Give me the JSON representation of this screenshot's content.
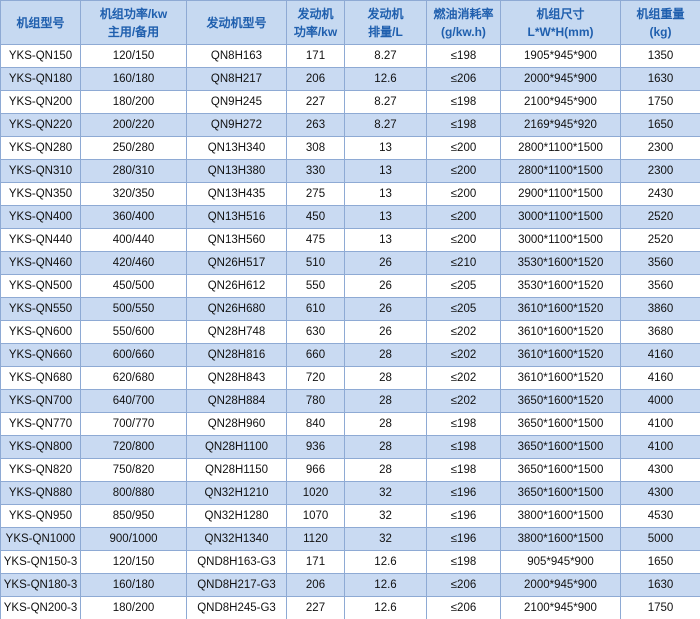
{
  "table": {
    "header": [
      [
        "机组型号"
      ],
      [
        "机组功率/kw",
        "主用/备用"
      ],
      [
        "发动机型号"
      ],
      [
        "发动机",
        "功率/kw"
      ],
      [
        "发动机",
        "排量/L"
      ],
      [
        "燃油消耗率",
        "(g/kw.h)"
      ],
      [
        "机组尺寸",
        "L*W*H(mm)"
      ],
      [
        "机组重量",
        "(kg)"
      ]
    ],
    "rows": [
      [
        "YKS-QN150",
        "120/150",
        "QN8H163",
        "171",
        "8.27",
        "≤198",
        "1905*945*900",
        "1350"
      ],
      [
        "YKS-QN180",
        "160/180",
        "QN8H217",
        "206",
        "12.6",
        "≤206",
        "2000*945*900",
        "1630"
      ],
      [
        "YKS-QN200",
        "180/200",
        "QN9H245",
        "227",
        "8.27",
        "≤198",
        "2100*945*900",
        "1750"
      ],
      [
        "YKS-QN220",
        "200/220",
        "QN9H272",
        "263",
        "8.27",
        "≤198",
        "2169*945*920",
        "1650"
      ],
      [
        "YKS-QN280",
        "250/280",
        "QN13H340",
        "308",
        "13",
        "≤200",
        "2800*1100*1500",
        "2300"
      ],
      [
        "YKS-QN310",
        "280/310",
        "QN13H380",
        "330",
        "13",
        "≤200",
        "2800*1100*1500",
        "2300"
      ],
      [
        "YKS-QN350",
        "320/350",
        "QN13H435",
        "275",
        "13",
        "≤200",
        "2900*1100*1500",
        "2430"
      ],
      [
        "YKS-QN400",
        "360/400",
        "QN13H516",
        "450",
        "13",
        "≤200",
        "3000*1100*1500",
        "2520"
      ],
      [
        "YKS-QN440",
        "400/440",
        "QN13H560",
        "475",
        "13",
        "≤200",
        "3000*1100*1500",
        "2520"
      ],
      [
        "YKS-QN460",
        "420/460",
        "QN26H517",
        "510",
        "26",
        "≤210",
        "3530*1600*1520",
        "3560"
      ],
      [
        "YKS-QN500",
        "450/500",
        "QN26H612",
        "550",
        "26",
        "≤205",
        "3530*1600*1520",
        "3560"
      ],
      [
        "YKS-QN550",
        "500/550",
        "QN26H680",
        "610",
        "26",
        "≤205",
        "3610*1600*1520",
        "3860"
      ],
      [
        "YKS-QN600",
        "550/600",
        "QN28H748",
        "630",
        "26",
        "≤202",
        "3610*1600*1520",
        "3680"
      ],
      [
        "YKS-QN660",
        "600/660",
        "QN28H816",
        "660",
        "28",
        "≤202",
        "3610*1600*1520",
        "4160"
      ],
      [
        "YKS-QN680",
        "620/680",
        "QN28H843",
        "720",
        "28",
        "≤202",
        "3610*1600*1520",
        "4160"
      ],
      [
        "YKS-QN700",
        "640/700",
        "QN28H884",
        "780",
        "28",
        "≤202",
        "3650*1600*1520",
        "4000"
      ],
      [
        "YKS-QN770",
        "700/770",
        "QN28H960",
        "840",
        "28",
        "≤198",
        "3650*1600*1500",
        "4100"
      ],
      [
        "YKS-QN800",
        "720/800",
        "QN28H1100",
        "936",
        "28",
        "≤198",
        "3650*1600*1500",
        "4100"
      ],
      [
        "YKS-QN820",
        "750/820",
        "QN28H1150",
        "966",
        "28",
        "≤198",
        "3650*1600*1500",
        "4300"
      ],
      [
        "YKS-QN880",
        "800/880",
        "QN32H1210",
        "1020",
        "32",
        "≤196",
        "3650*1600*1500",
        "4300"
      ],
      [
        "YKS-QN950",
        "850/950",
        "QN32H1280",
        "1070",
        "32",
        "≤196",
        "3800*1600*1500",
        "4530"
      ],
      [
        "YKS-QN1000",
        "900/1000",
        "QN32H1340",
        "1120",
        "32",
        "≤196",
        "3800*1600*1500",
        "5000"
      ],
      [
        "YKS-QN150-3",
        "120/150",
        "QND8H163-G3",
        "171",
        "12.6",
        "≤198",
        "905*945*900",
        "1650"
      ],
      [
        "YKS-QN180-3",
        "160/180",
        "QND8H217-G3",
        "206",
        "12.6",
        "≤206",
        "2000*945*900",
        "1630"
      ],
      [
        "YKS-QN200-3",
        "180/200",
        "QND8H245-G3",
        "227",
        "12.6",
        "≤206",
        "2100*945*900",
        "1750"
      ]
    ]
  }
}
